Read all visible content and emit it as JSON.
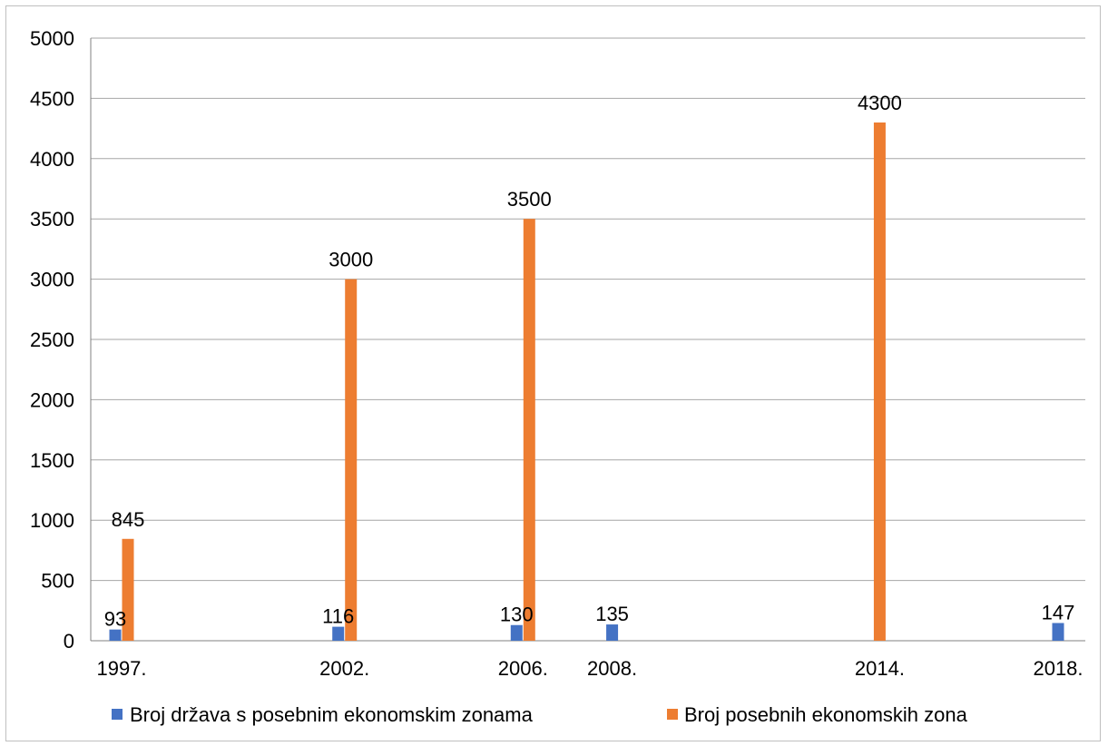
{
  "chart_data": {
    "type": "bar",
    "title": "",
    "xlabel": "",
    "ylabel": "",
    "categories": [
      "1997.",
      "2002.",
      "2006.",
      "2008.",
      "2014.",
      "2018."
    ],
    "x_years": [
      1997,
      2002,
      2006,
      2008,
      2014,
      2018
    ],
    "ylim": [
      0,
      5000
    ],
    "yticks": [
      0,
      500,
      1000,
      1500,
      2000,
      2500,
      3000,
      3500,
      4000,
      4500,
      5000
    ],
    "grid": true,
    "legend_position": "bottom",
    "series": [
      {
        "name": "Broj država s posebnim ekonomskim zonama",
        "color": "#4472c4",
        "values": [
          93,
          116,
          130,
          135,
          null,
          147
        ]
      },
      {
        "name": "Broj posebnih ekonomskih zona",
        "color": "#ed7d31",
        "values": [
          845,
          3000,
          3500,
          null,
          4300,
          null
        ]
      }
    ]
  }
}
